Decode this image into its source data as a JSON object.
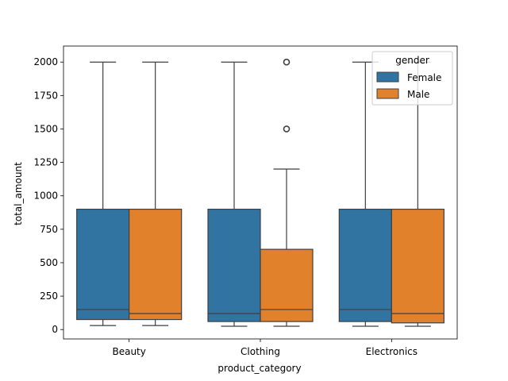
{
  "chart_data": {
    "type": "box",
    "xlabel": "product_category",
    "ylabel": "total_amount",
    "categories": [
      "Beauty",
      "Clothing",
      "Electronics"
    ],
    "ylim": [
      -70,
      2120
    ],
    "yticks": [
      0,
      250,
      500,
      750,
      1000,
      1250,
      1500,
      1750,
      2000
    ],
    "grid": false,
    "legend": {
      "title": "gender",
      "placement": "top-right"
    },
    "series": [
      {
        "name": "Female",
        "color": "#3274a1",
        "boxes": [
          {
            "category": "Beauty",
            "whislo": 30,
            "q1": 75,
            "med": 150,
            "q3": 900,
            "whishi": 2000,
            "fliers": []
          },
          {
            "category": "Clothing",
            "whislo": 25,
            "q1": 60,
            "med": 120,
            "q3": 900,
            "whishi": 2000,
            "fliers": []
          },
          {
            "category": "Electronics",
            "whislo": 25,
            "q1": 60,
            "med": 150,
            "q3": 900,
            "whishi": 2000,
            "fliers": []
          }
        ]
      },
      {
        "name": "Male",
        "color": "#e1812c",
        "boxes": [
          {
            "category": "Beauty",
            "whislo": 30,
            "q1": 75,
            "med": 120,
            "q3": 900,
            "whishi": 2000,
            "fliers": []
          },
          {
            "category": "Clothing",
            "whislo": 25,
            "q1": 60,
            "med": 150,
            "q3": 600,
            "whishi": 1200,
            "fliers": [
              1500,
              2000
            ]
          },
          {
            "category": "Electronics",
            "whislo": 25,
            "q1": 50,
            "med": 120,
            "q3": 900,
            "whishi": 2000,
            "fliers": []
          }
        ]
      }
    ]
  }
}
